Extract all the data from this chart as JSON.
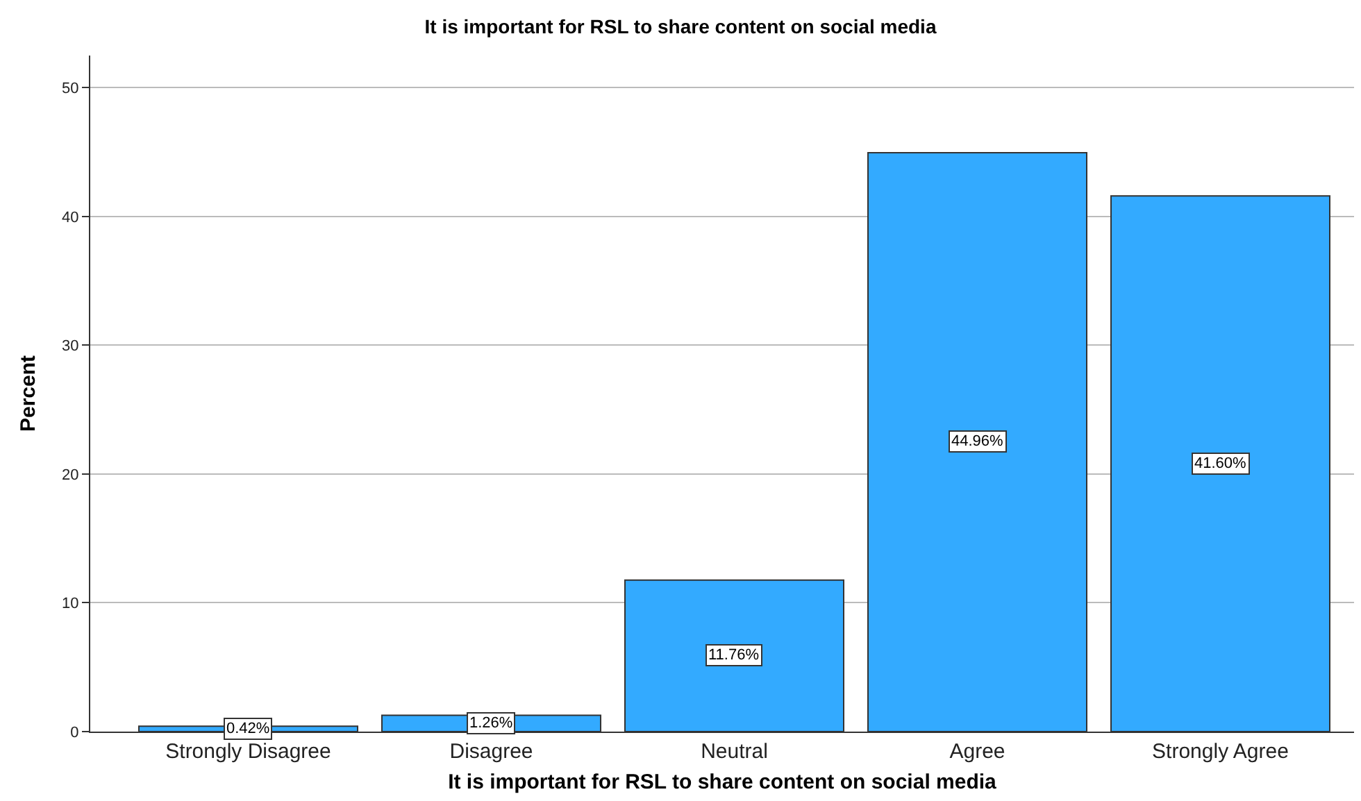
{
  "chart_data": {
    "type": "bar",
    "title": "It is important for RSL to share content on social media",
    "xlabel": "It is important for RSL to share content on social media",
    "ylabel": "Percent",
    "categories": [
      "Strongly Disagree",
      "Disagree",
      "Neutral",
      "Agree",
      "Strongly Agree"
    ],
    "values": [
      0.42,
      1.26,
      11.76,
      44.96,
      41.6
    ],
    "value_labels": [
      "0.42%",
      "1.26%",
      "11.76%",
      "44.96%",
      "41.60%"
    ],
    "color": "#33aaff",
    "ylim": [
      0,
      52.5
    ],
    "yticks": [
      0,
      10,
      20,
      30,
      40,
      50
    ],
    "grid": "y",
    "legend": false
  }
}
